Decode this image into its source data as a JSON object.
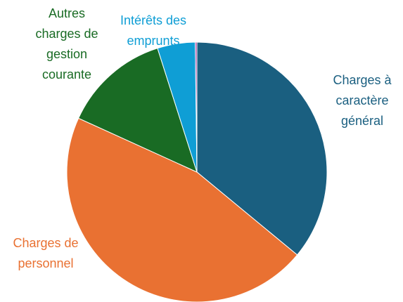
{
  "chart_data": {
    "type": "pie",
    "categories": [
      [
        "Charges à",
        "caractère",
        "général"
      ],
      [
        "Charges de",
        "personnel"
      ],
      [
        "Autres",
        "charges de",
        "gestion",
        "courante"
      ],
      [
        "Intérêts des",
        "emprunts"
      ],
      null
    ],
    "values": [
      36,
      45.8,
      13.3,
      4.7,
      0.2
    ],
    "colors": [
      "#1a5f80",
      "#e97132",
      "#196b24",
      "#0f9ed5",
      "#a02b93"
    ]
  }
}
